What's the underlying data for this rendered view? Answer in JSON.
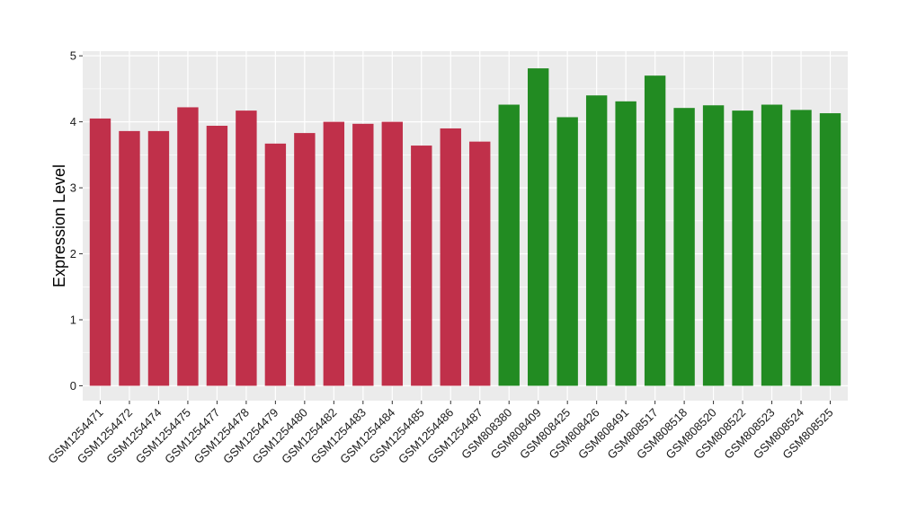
{
  "chart_data": {
    "type": "bar",
    "title": "",
    "xlabel": "",
    "ylabel": "Expression Level",
    "ylim": [
      0,
      5
    ],
    "yticks": [
      0,
      1,
      2,
      3,
      4,
      5
    ],
    "grid": true,
    "panel_background": "#ebebeb",
    "grid_color": "#ffffff",
    "categories": [
      "GSM1254471",
      "GSM1254472",
      "GSM1254474",
      "GSM1254475",
      "GSM1254477",
      "GSM1254478",
      "GSM1254479",
      "GSM1254480",
      "GSM1254482",
      "GSM1254483",
      "GSM1254484",
      "GSM1254485",
      "GSM1254486",
      "GSM1254487",
      "GSM808380",
      "GSM808409",
      "GSM808425",
      "GSM808426",
      "GSM808491",
      "GSM808517",
      "GSM808518",
      "GSM808520",
      "GSM808522",
      "GSM808523",
      "GSM808524",
      "GSM808525"
    ],
    "values": [
      4.05,
      3.86,
      3.86,
      4.22,
      3.94,
      4.17,
      3.67,
      3.83,
      4.0,
      3.97,
      4.0,
      3.64,
      3.9,
      3.7,
      4.26,
      4.81,
      4.07,
      4.4,
      4.31,
      4.7,
      4.21,
      4.25,
      4.17,
      4.26,
      4.18,
      4.13
    ],
    "colors": [
      "#c0304a",
      "#c0304a",
      "#c0304a",
      "#c0304a",
      "#c0304a",
      "#c0304a",
      "#c0304a",
      "#c0304a",
      "#c0304a",
      "#c0304a",
      "#c0304a",
      "#c0304a",
      "#c0304a",
      "#c0304a",
      "#228b22",
      "#228b22",
      "#228b22",
      "#228b22",
      "#228b22",
      "#228b22",
      "#228b22",
      "#228b22",
      "#228b22",
      "#228b22",
      "#228b22",
      "#228b22"
    ]
  }
}
